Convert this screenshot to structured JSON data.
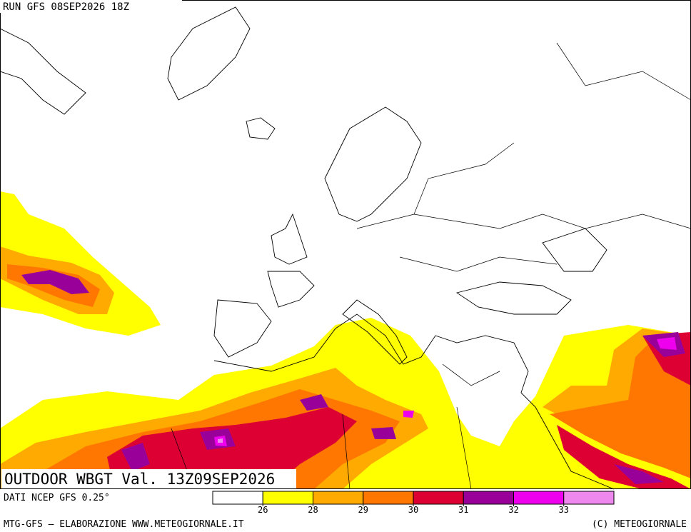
{
  "header": {
    "run": "RUN GFS 08SEP2026 18Z"
  },
  "map": {
    "title": "OUTDOOR WBGT Val. 13Z09SEP2026"
  },
  "legend": {
    "source": "DATI NCEP GFS 0.25°",
    "colors": [
      "#ffffff",
      "#ffff00",
      "#ffaa00",
      "#ff7700",
      "#dd0033",
      "#990099",
      "#ee00ee",
      "#ee88ee"
    ],
    "ticks": [
      26,
      28,
      29,
      30,
      31,
      32,
      33
    ]
  },
  "footer": {
    "left": "MTG-GFS — ELABORAZIONE WWW.METEOGIORNALE.IT",
    "right": "(C) METEOGIORNALE"
  }
}
